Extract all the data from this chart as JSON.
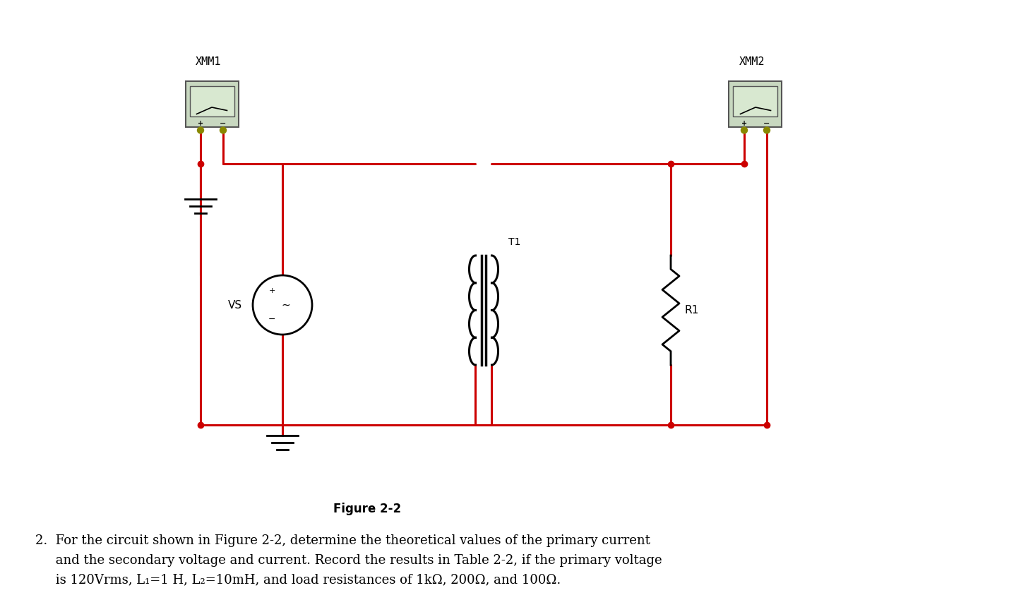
{
  "title": "Figure 2-2",
  "bg_color": "#ffffff",
  "wire_color": "#cc0000",
  "black_color": "#000000",
  "gray_color": "#888888",
  "text_paragraph": "2. For the circuit shown in Figure 2-2, determine the theoretical values of the primary current\n    and the secondary voltage and current. Record the results in Table 2-2, if the primary voltage\n    is 120Vrms, L₁=1 H, L₂=10mH, and load resistances of 1kΩ, 200Ω, and 100Ω.",
  "xmm1_label": "XMM1",
  "xmm2_label": "XMM2",
  "t1_label": "T1",
  "vs_label": "VS",
  "r1_label": "R1",
  "fig_title_fontsize": 12,
  "label_fontsize": 12,
  "paragraph_fontsize": 14
}
